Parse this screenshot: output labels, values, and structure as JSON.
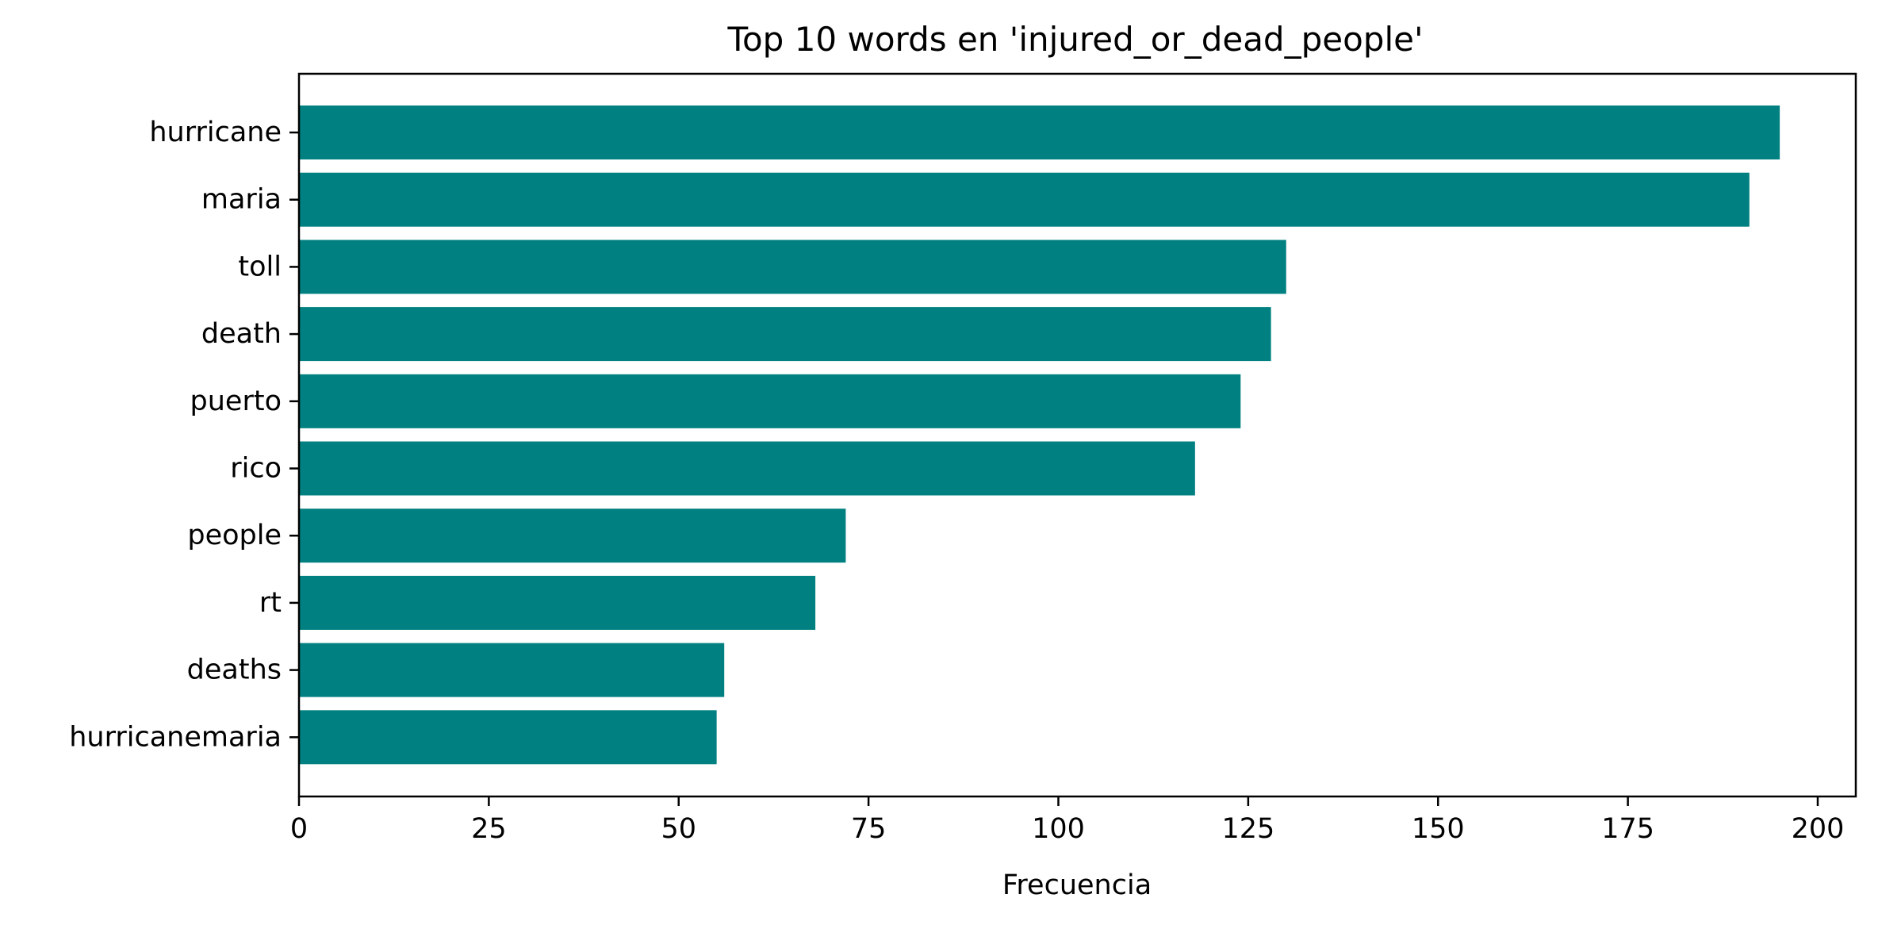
{
  "chart_data": {
    "type": "bar",
    "orientation": "horizontal",
    "title": "Top 10 words en 'injured_or_dead_people'",
    "xlabel": "Frecuencia",
    "ylabel": "",
    "categories": [
      "hurricane",
      "maria",
      "toll",
      "death",
      "puerto",
      "rico",
      "people",
      "rt",
      "deaths",
      "hurricanemaria"
    ],
    "values": [
      195,
      191,
      130,
      128,
      124,
      118,
      72,
      68,
      56,
      55
    ],
    "xlim": [
      0,
      205
    ],
    "xticks": [
      0,
      25,
      50,
      75,
      100,
      125,
      150,
      175,
      200
    ],
    "xtick_labels": [
      "0",
      "25",
      "50",
      "75",
      "100",
      "125",
      "150",
      "175",
      "200"
    ],
    "bar_color": "#008080",
    "grid": false,
    "legend": "none"
  }
}
